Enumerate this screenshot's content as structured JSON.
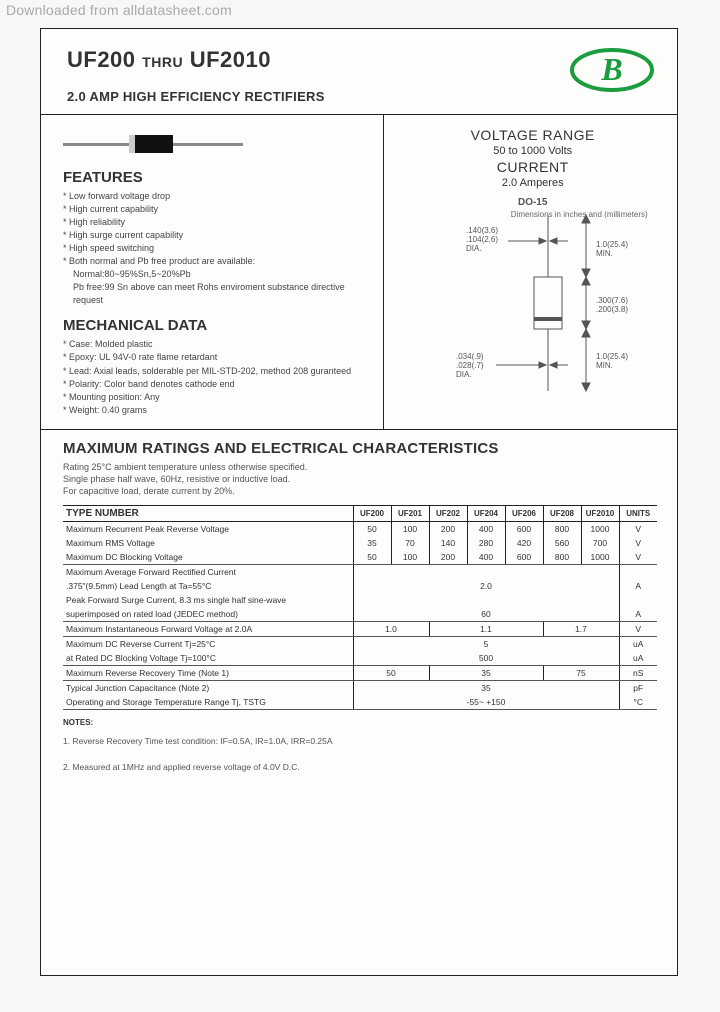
{
  "watermark": "Downloaded from alldatasheet.com",
  "header": {
    "title_left": "UF200",
    "title_mid": "THRU",
    "title_right": "UF2010",
    "subtitle": "2.0 AMP HIGH EFFICIENCY RECTIFIERS",
    "logo_color": "#1a9c3f"
  },
  "features": {
    "heading": "FEATURES",
    "items": [
      "Low forward voltage drop",
      "High current capability",
      "High reliability",
      "High surge current capability",
      "High speed switching",
      "Both normal and Pb free product are available:",
      "Normal:80~95%Sn,5~20%Pb",
      "Pb free:99 Sn above can meet Rohs enviroment substance directive request"
    ],
    "indent_idx": [
      6,
      7
    ]
  },
  "mechdata": {
    "heading": "MECHANICAL DATA",
    "items": [
      "Case: Molded plastic",
      "Epoxy: UL 94V-0 rate flame retardant",
      "Lead: Axial leads, solderable per MIL-STD-202, method 208 guranteed",
      "Polarity: Color band denotes cathode end",
      "Mounting position: Any",
      "Weight: 0.40 grams"
    ]
  },
  "voltage_range": {
    "title": "VOLTAGE RANGE",
    "volts": "50 to 1000 Volts",
    "current_title": "CURRENT",
    "current": "2.0 Amperes",
    "pkg_label": "DO-15",
    "dim_dia_top": ".140(3.6)\n.104(2.6)\nDIA.",
    "dim_len_top": "1.0(25.4)\nMIN.",
    "dim_body": ".300(7.6)\n.200(3.8)",
    "dim_len_bot": "1.0(25.4)\nMIN.",
    "dim_dia_bot": ".034(.9)\n.028(.7)\nDIA.",
    "dim_note": "Dimensions in inches and (millimeters)"
  },
  "ratings": {
    "heading": "MAXIMUM RATINGS AND ELECTRICAL CHARACTERISTICS",
    "intro": "Rating 25°C ambient temperature unless otherwise specified.\nSingle phase half wave, 60Hz, resistive or inductive load.\nFor capacitive load, derate current by 20%.",
    "type_label": "TYPE NUMBER",
    "columns": [
      "UF200",
      "UF201",
      "UF202",
      "UF204",
      "UF206",
      "UF208",
      "UF2010"
    ],
    "units_label": "UNITS",
    "rows": [
      {
        "param": "Maximum Recurrent Peak Reverse Voltage",
        "vals": [
          "50",
          "100",
          "200",
          "400",
          "600",
          "800",
          "1000"
        ],
        "unit": "V",
        "top": true
      },
      {
        "param": "Maximum RMS Voltage",
        "vals": [
          "35",
          "70",
          "140",
          "280",
          "420",
          "560",
          "700"
        ],
        "unit": "V"
      },
      {
        "param": "Maximum DC Blocking Voltage",
        "vals": [
          "50",
          "100",
          "200",
          "400",
          "600",
          "800",
          "1000"
        ],
        "unit": "V",
        "bot": true
      },
      {
        "param": "Maximum Average Forward Rectified Current",
        "span": "",
        "unit": "",
        "top": true
      },
      {
        "param": ".375\"(9.5mm) Lead Length at Ta=55°C",
        "span": "2.0",
        "unit": "A"
      },
      {
        "param": "Peak Forward Surge Current, 8.3 ms single half sine-wave",
        "span": "",
        "unit": ""
      },
      {
        "param": "superimposed on rated load (JEDEC method)",
        "span": "60",
        "unit": "A",
        "bot": true
      },
      {
        "param": "Maximum Instantaneous Forward Voltage at 2.0A",
        "vals3": [
          "1.0",
          "1.1",
          "1.7"
        ],
        "unit": "V",
        "top": true,
        "bot": true
      },
      {
        "param": "Maximum DC Reverse Current                Tj=25°C",
        "span": "5",
        "unit": "uA",
        "top": true
      },
      {
        "param": "at Rated DC Blocking Voltage              Tj=100°C",
        "span": "500",
        "unit": "uA",
        "bot": true
      },
      {
        "param": "Maximum Reverse Recovery Time (Note 1)",
        "vals3": [
          "50",
          "35",
          "75"
        ],
        "unit": "nS",
        "top": true,
        "bot": true
      },
      {
        "param": "Typical Junction Capacitance (Note 2)",
        "span": "35",
        "unit": "pF",
        "top": true
      },
      {
        "param": "Operating and Storage Temperature Range Tj, TSTG",
        "span": "-55~ +150",
        "unit": "°C",
        "bot": true
      }
    ],
    "notes_h": "NOTES:",
    "notes": [
      "1. Reverse Recovery Time test condition: IF=0.5A, IR=1.0A, IRR=0.25A",
      "2. Measured at 1MHz and applied reverse voltage of 4.0V D.C."
    ]
  }
}
